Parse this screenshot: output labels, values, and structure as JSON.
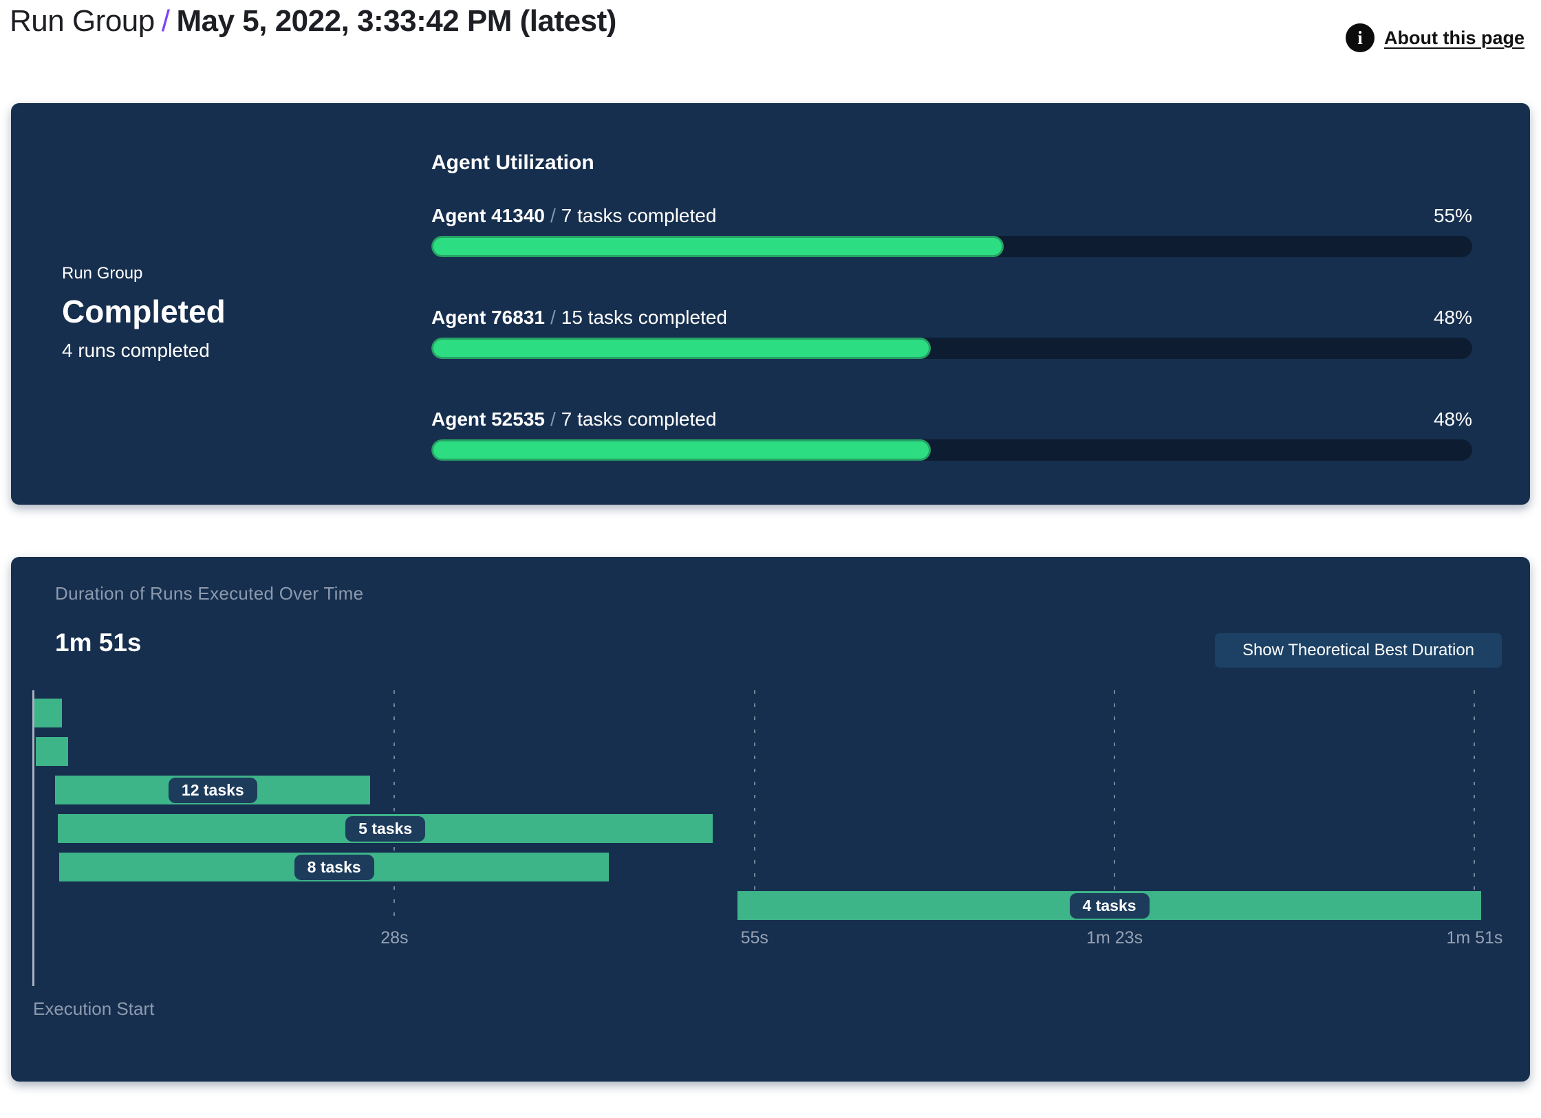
{
  "header": {
    "breadcrumb": "Run Group",
    "separator": "/",
    "title": "May 5, 2022, 3:33:42 PM (latest)",
    "about_label": "About this page",
    "info_icon": "info-icon"
  },
  "summary_panel": {
    "eyebrow": "Run Group",
    "status": "Completed",
    "subtext": "4 runs completed",
    "utilization": {
      "heading": "Agent Utilization",
      "separator": "/",
      "agents": [
        {
          "name": "Agent 41340",
          "tasks": "7 tasks completed",
          "percent": 55,
          "percent_label": "55%"
        },
        {
          "name": "Agent 76831",
          "tasks": "15 tasks completed",
          "percent": 48,
          "percent_label": "48%"
        },
        {
          "name": "Agent 52535",
          "tasks": "7 tasks completed",
          "percent": 48,
          "percent_label": "48%"
        }
      ]
    }
  },
  "duration_panel": {
    "title": "Duration of Runs Executed Over Time",
    "total": "1m 51s",
    "button_label": "Show Theoretical Best Duration",
    "execution_start": "Execution Start"
  },
  "chart_data": {
    "type": "gantt",
    "title": "Duration of Runs Executed Over Time",
    "total_duration_label": "1m 51s",
    "x_axis_label": "Execution Start",
    "x_range_seconds": [
      0,
      111.5
    ],
    "x_ticks": [
      {
        "label": "28s",
        "seconds": 27.75
      },
      {
        "label": "55s",
        "seconds": 55.5
      },
      {
        "label": "1m 23s",
        "seconds": 83.25
      },
      {
        "label": "1m 51s",
        "seconds": 111
      }
    ],
    "runs": [
      {
        "start_s": 0,
        "end_s": 2.1,
        "label": ""
      },
      {
        "start_s": 0.1,
        "end_s": 2.6,
        "label": ""
      },
      {
        "start_s": 1.6,
        "end_s": 25.9,
        "label": "12 tasks"
      },
      {
        "start_s": 1.8,
        "end_s": 52.3,
        "label": "5 tasks"
      },
      {
        "start_s": 1.9,
        "end_s": 44.3,
        "label": "8 tasks"
      },
      {
        "start_s": 54.2,
        "end_s": 111.5,
        "label": "4 tasks"
      }
    ],
    "legend": null,
    "grid": "vertical-dashed"
  },
  "colors": {
    "accent_purple": "#7b45f5",
    "panel_bg": "#172f4e",
    "progress_fill": "#2ddd82",
    "progress_border": "#26a265",
    "progress_track": "#0d1c30",
    "gantt_bar": "#3eb489",
    "badge_bg": "#1d3c5c",
    "muted_text": "#8c9aae",
    "button_bg": "#1d4164"
  }
}
